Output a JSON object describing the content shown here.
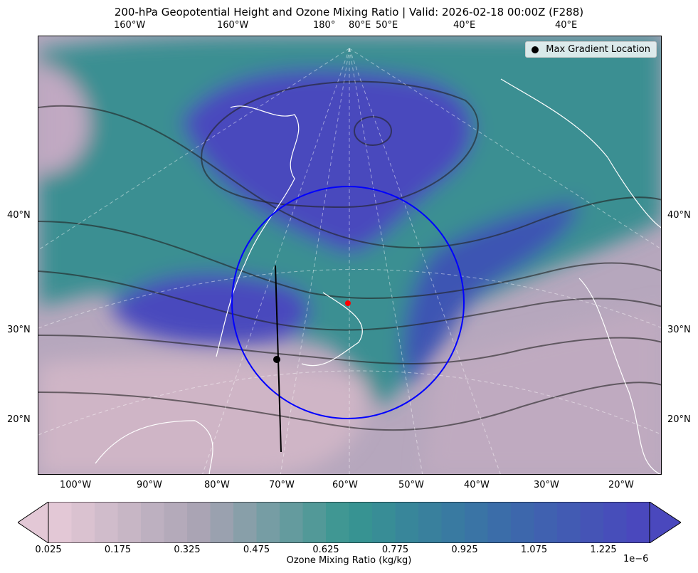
{
  "title": "200-hPa Geopotential Height and Ozone Mixing Ratio   |  Valid: 2026-02-18 00:00Z (F288)",
  "top_labels": [
    "160°W",
    "160°W",
    "180°",
    "80°E",
    "50°E",
    "40°E",
    "40°E"
  ],
  "left_labels": [
    "40°N",
    "30°N",
    "20°N"
  ],
  "right_labels": [
    "40°N",
    "30°N",
    "20°N"
  ],
  "bottom_labels": [
    "100°W",
    "90°W",
    "80°W",
    "70°W",
    "60°W",
    "50°W",
    "40°W",
    "30°W",
    "20°W"
  ],
  "legend": {
    "label": "Max Gradient Location",
    "marker_color": "#000000"
  },
  "markers": {
    "circle_color": "#0000ff",
    "center_color": "#ff0000",
    "max_gradient_color": "#000000"
  },
  "colorbar": {
    "label": "Ozone Mixing Ratio (kg/kg)",
    "multiplier": "1e−6",
    "ticks": [
      "0.025",
      "0.175",
      "0.325",
      "0.475",
      "0.625",
      "0.775",
      "0.925",
      "1.075",
      "1.225"
    ],
    "min": 0.025,
    "max": 1.325,
    "step": 0.05,
    "colors": [
      "#e3c8d6",
      "#a8a3b3",
      "#379690",
      "#3a6fa8",
      "#4a48bd"
    ],
    "extend": "both"
  }
}
